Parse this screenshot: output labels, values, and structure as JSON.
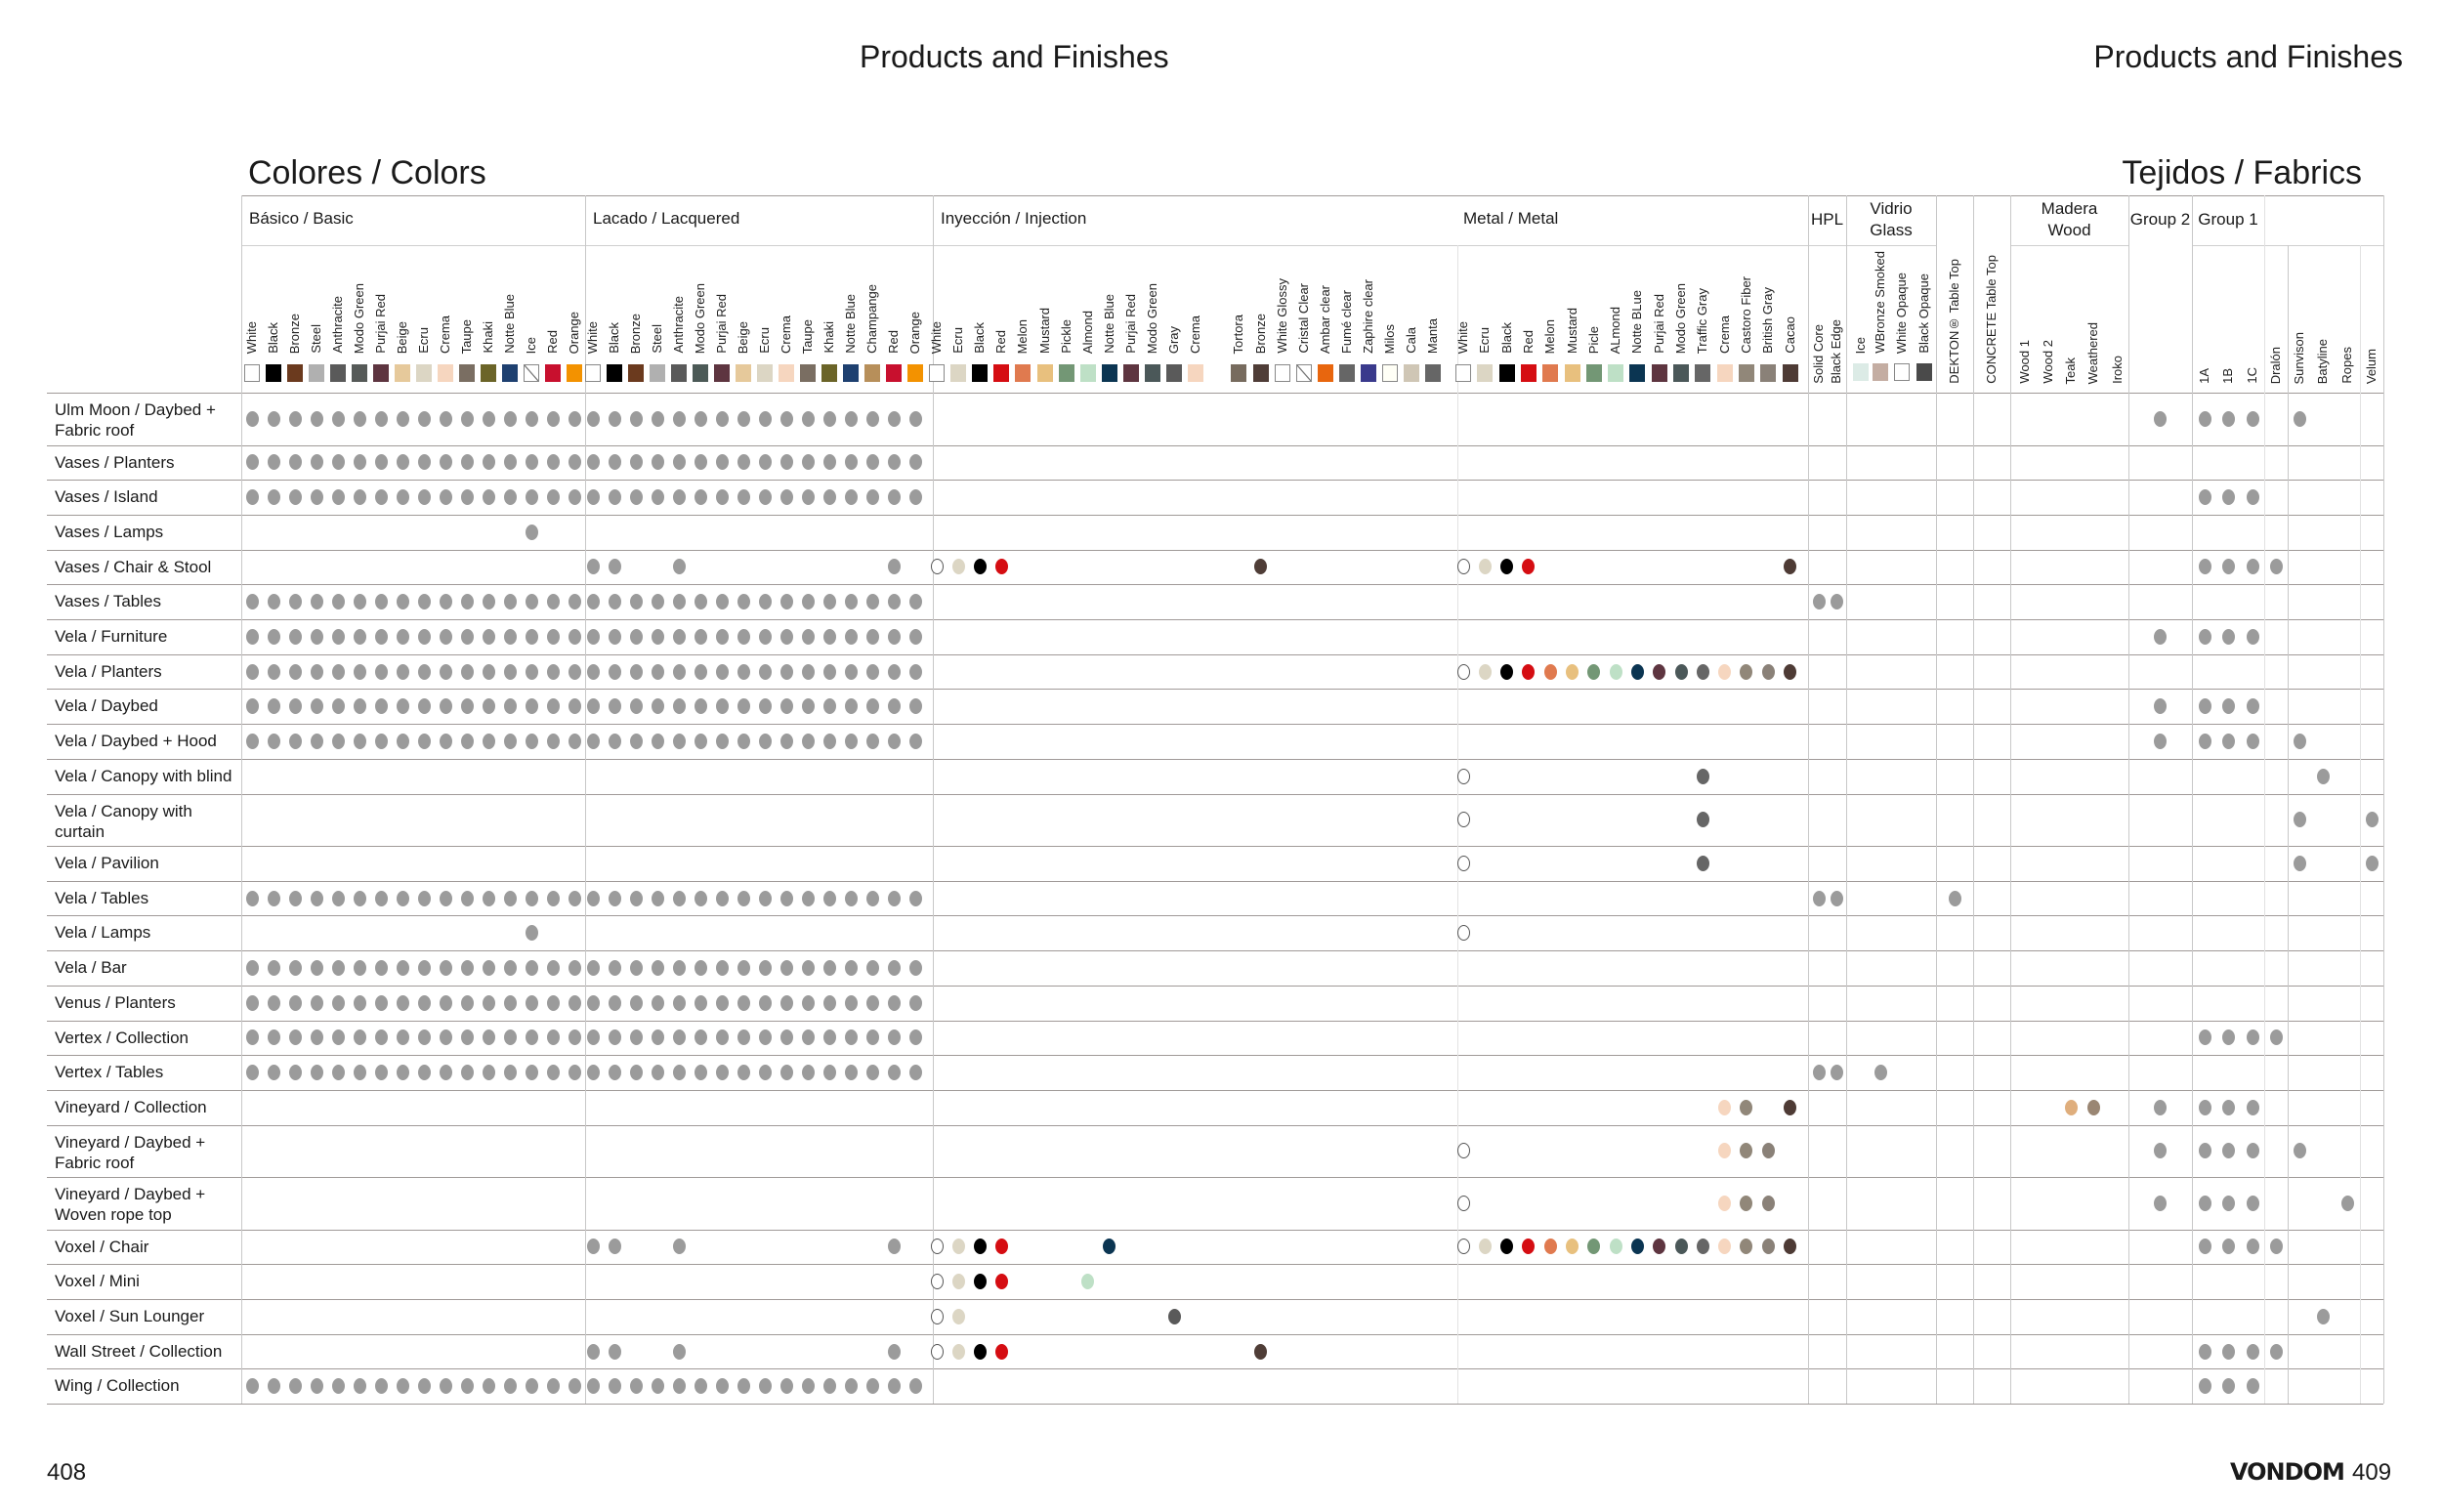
{
  "page_left": {
    "header_title": "Products and Finishes",
    "section_title": "Colores / Colors",
    "page_number": "408"
  },
  "page_right": {
    "header_title": "Products and Finishes",
    "section_title": "Tejidos / Fabrics",
    "brand": "VONDOM",
    "page_number": "409"
  },
  "dot_color": "#9b9b9b",
  "groups": {
    "basic": {
      "label": [
        "Básico / Basic"
      ],
      "columns": [
        {
          "name": "White",
          "swatch": "#ffffff"
        },
        {
          "name": "Black",
          "swatch": "#000000"
        },
        {
          "name": "Bronze",
          "swatch": "#6b3a1e"
        },
        {
          "name": "Steel",
          "swatch": "#b0b0b0"
        },
        {
          "name": "Anthracite",
          "swatch": "#5a5a5a"
        },
        {
          "name": "Modo Green",
          "swatch": "#565a58"
        },
        {
          "name": "Purjai Red",
          "swatch": "#5e3540"
        },
        {
          "name": "Beige",
          "swatch": "#e6c99b"
        },
        {
          "name": "Ecru",
          "swatch": "#dcd6c4"
        },
        {
          "name": "Crema",
          "swatch": "#f6d6bf"
        },
        {
          "name": "Taupe",
          "swatch": "#7a6e62"
        },
        {
          "name": "Khaki",
          "swatch": "#6b6428"
        },
        {
          "name": "Notte Blue",
          "swatch": "#1e4070"
        },
        {
          "name": "Ice",
          "swatch": "slash"
        },
        {
          "name": "Red",
          "swatch": "#c8102e"
        },
        {
          "name": "Orange",
          "swatch": "#f39200"
        }
      ]
    },
    "lacquered": {
      "label": [
        "Lacado / Lacquered"
      ],
      "columns": [
        {
          "name": "White",
          "swatch": "#ffffff"
        },
        {
          "name": "Black",
          "swatch": "#000000"
        },
        {
          "name": "Bronze",
          "swatch": "#6b3a1e"
        },
        {
          "name": "Steel",
          "swatch": "#b0b0b0"
        },
        {
          "name": "Anthracite",
          "swatch": "#5a5a5a"
        },
        {
          "name": "Modo Green",
          "swatch": "#4c5a57"
        },
        {
          "name": "Purjai Red",
          "swatch": "#5e3540"
        },
        {
          "name": "Beige",
          "swatch": "#e6c99b"
        },
        {
          "name": "Ecru",
          "swatch": "#dcd6c4"
        },
        {
          "name": "Crema",
          "swatch": "#f6d6bf"
        },
        {
          "name": "Taupe",
          "swatch": "#7a6e62"
        },
        {
          "name": "Khaki",
          "swatch": "#6b6428"
        },
        {
          "name": "Notte Blue",
          "swatch": "#1e4070"
        },
        {
          "name": "Champange",
          "swatch": "#b78f5a"
        },
        {
          "name": "Red",
          "swatch": "#c8102e"
        },
        {
          "name": "Orange",
          "swatch": "#f39200"
        }
      ]
    },
    "injection": {
      "label": [
        "Inyección / Injection"
      ],
      "columns": [
        {
          "name": "White",
          "swatch": "#ffffff"
        },
        {
          "name": "Ecru",
          "swatch": "#dcd6c4"
        },
        {
          "name": "Black",
          "swatch": "#000000"
        },
        {
          "name": "Red",
          "swatch": "#d50d12"
        },
        {
          "name": "Melon",
          "swatch": "#e07a4f"
        },
        {
          "name": "Mustard",
          "swatch": "#e8c07e"
        },
        {
          "name": "Pickle",
          "swatch": "#739775"
        },
        {
          "name": "Almond",
          "swatch": "#bee0c6"
        },
        {
          "name": "Notte Blue",
          "swatch": "#0b3552"
        },
        {
          "name": "Purjai Red",
          "swatch": "#5e3540"
        },
        {
          "name": "Modo Green",
          "swatch": "#4b5859"
        },
        {
          "name": "Gray",
          "swatch": "#5a5a5a"
        },
        {
          "name": "Crema",
          "swatch": "#f6d6bf"
        },
        {
          "name": "Tortora",
          "swatch": "#776b5e"
        },
        {
          "name": "Bronze",
          "swatch": "#4f3d37"
        },
        {
          "name": "White Glossy",
          "swatch": "#ffffff"
        },
        {
          "name": "Cristal Clear",
          "swatch": "slash"
        },
        {
          "name": "Ambar clear",
          "swatch": "#e8660e"
        },
        {
          "name": "Fumé clear",
          "swatch": "#666666"
        },
        {
          "name": "Zaphire clear",
          "swatch": "#3a3a8c"
        },
        {
          "name": "Milos",
          "swatch": "#fffff6"
        },
        {
          "name": "Cala",
          "swatch": "#cfc6b5"
        },
        {
          "name": "Manta",
          "swatch": "#666666"
        }
      ]
    },
    "metal": {
      "label": [
        "Metal / Metal"
      ],
      "columns": [
        {
          "name": "White",
          "swatch": "#ffffff"
        },
        {
          "name": "Ecru",
          "swatch": "#dcd6c4"
        },
        {
          "name": "Black",
          "swatch": "#000000"
        },
        {
          "name": "Red",
          "swatch": "#d50d12"
        },
        {
          "name": "Melon",
          "swatch": "#e07a4f"
        },
        {
          "name": "Mustard",
          "swatch": "#e8c07e"
        },
        {
          "name": "Picle",
          "swatch": "#739775"
        },
        {
          "name": "ALmond",
          "swatch": "#bee0c6"
        },
        {
          "name": "Notte BLue",
          "swatch": "#0b3552"
        },
        {
          "name": "Purjai Red",
          "swatch": "#5e3540"
        },
        {
          "name": "Modo Green",
          "swatch": "#4b5859"
        },
        {
          "name": "Traffic Gray",
          "swatch": "#666666"
        },
        {
          "name": "Crema",
          "swatch": "#f6d6bf"
        },
        {
          "name": "Castoro Fiber",
          "swatch": "#918779"
        },
        {
          "name": "British Gray",
          "swatch": "#8a8178"
        },
        {
          "name": "Cacao",
          "swatch": "#4e3b35"
        }
      ]
    },
    "hpl": {
      "label": [
        "HPL"
      ],
      "columns": [
        {
          "name": "Solid Core"
        },
        {
          "name": "Black Edge"
        }
      ]
    },
    "glass": {
      "label": [
        "Vidrio",
        "Glass"
      ],
      "columns": [
        {
          "name": "Ice",
          "swatch": "#dcebe6"
        },
        {
          "name": "WBronze Smoked",
          "swatch": "#c4ada2"
        },
        {
          "name": "White Opaque",
          "swatch": "#ffffff"
        },
        {
          "name": "Black Opaque",
          "swatch": "#4a4a4a"
        }
      ]
    },
    "dekton": {
      "label": [],
      "columns": [
        {
          "name": "DEKTON® Table Top"
        }
      ]
    },
    "concrete": {
      "label": [],
      "columns": [
        {
          "name": "CONCRETE Table Top"
        }
      ]
    },
    "wood": {
      "label": [
        "Madera",
        "Wood"
      ],
      "columns": [
        {
          "name": "Wood 1"
        },
        {
          "name": "Wood 2"
        },
        {
          "name": "Teak",
          "dot": "#dfae7d"
        },
        {
          "name": "Weathered",
          "dot": "#9a8673"
        },
        {
          "name": "Iroko"
        }
      ]
    },
    "group2": {
      "label": [
        "Group 2"
      ],
      "columns": [
        {
          "name": ""
        }
      ]
    },
    "group1": {
      "label": [
        "Group 1"
      ],
      "columns": [
        {
          "name": "1A"
        },
        {
          "name": "1B"
        },
        {
          "name": "1C"
        }
      ]
    },
    "fabric_types": {
      "label": [],
      "columns": [
        {
          "name": "Dralón"
        },
        {
          "name": "Sunvison"
        },
        {
          "name": "Batyline"
        },
        {
          "name": "Ropes"
        },
        {
          "name": "Velum"
        }
      ]
    }
  },
  "rows": [
    {
      "label": [
        "Ulm Moon / Daybed +",
        "Fabric roof"
      ],
      "finishes": {
        "basic": "all",
        "lacquered": "all",
        "group2": [
          0
        ],
        "group1": [
          0,
          1,
          2
        ],
        "fabric_types": [
          1
        ]
      }
    },
    {
      "label": [
        "Vases / Planters"
      ],
      "finishes": {
        "basic": "all",
        "lacquered": "all"
      }
    },
    {
      "label": [
        "Vases / Island"
      ],
      "finishes": {
        "basic": "all",
        "lacquered": "all",
        "group1": [
          0,
          1,
          2
        ]
      }
    },
    {
      "label": [
        "Vases / Lamps"
      ],
      "finishes": {
        "basic": [
          13
        ]
      }
    },
    {
      "label": [
        "Vases / Chair & Stool"
      ],
      "finishes": {
        "lacquered": [
          0,
          1,
          4,
          14
        ],
        "injection": [
          0,
          1,
          2,
          3,
          14
        ],
        "metal": [
          0,
          1,
          2,
          3,
          15
        ],
        "group1": [
          0,
          1,
          2
        ],
        "fabric_types": [
          0
        ]
      }
    },
    {
      "label": [
        "Vases / Tables"
      ],
      "finishes": {
        "basic": "all",
        "lacquered": "all",
        "hpl": [
          0,
          1
        ]
      }
    },
    {
      "label": [
        "Vela / Furniture"
      ],
      "finishes": {
        "basic": "all",
        "lacquered": "all",
        "group2": [
          0
        ],
        "group1": [
          0,
          1,
          2
        ]
      }
    },
    {
      "label": [
        "Vela / Planters"
      ],
      "finishes": {
        "basic": "all",
        "lacquered": "all",
        "metal": "all"
      }
    },
    {
      "label": [
        "Vela / Daybed"
      ],
      "finishes": {
        "basic": "all",
        "lacquered": "all",
        "group2": [
          0
        ],
        "group1": [
          0,
          1,
          2
        ]
      }
    },
    {
      "label": [
        "Vela / Daybed + Hood"
      ],
      "finishes": {
        "basic": "all",
        "lacquered": "all",
        "group2": [
          0
        ],
        "group1": [
          0,
          1,
          2
        ],
        "fabric_types": [
          1
        ]
      }
    },
    {
      "label": [
        "Vela / Canopy with blind"
      ],
      "finishes": {
        "metal": [
          0,
          11
        ],
        "fabric_types": [
          2
        ]
      }
    },
    {
      "label": [
        "Vela / Canopy with",
        "curtain"
      ],
      "finishes": {
        "metal": [
          0,
          11
        ],
        "fabric_types": [
          1,
          4
        ]
      }
    },
    {
      "label": [
        "Vela / Pavilion"
      ],
      "finishes": {
        "metal": [
          0,
          11
        ],
        "fabric_types": [
          1,
          4
        ]
      }
    },
    {
      "label": [
        "Vela / Tables"
      ],
      "finishes": {
        "basic": "all",
        "lacquered": "all",
        "hpl": [
          0,
          1
        ],
        "dekton": [
          0
        ]
      }
    },
    {
      "label": [
        "Vela / Lamps"
      ],
      "finishes": {
        "basic": [
          13
        ],
        "metal": [
          0
        ]
      }
    },
    {
      "label": [
        "Vela / Bar"
      ],
      "finishes": {
        "basic": "all",
        "lacquered": "all"
      }
    },
    {
      "label": [
        "Venus / Planters"
      ],
      "finishes": {
        "basic": "all",
        "lacquered": "all"
      }
    },
    {
      "label": [
        "Vertex / Collection"
      ],
      "finishes": {
        "basic": "all",
        "lacquered": "all",
        "group1": [
          0,
          1,
          2
        ],
        "fabric_types": [
          0
        ]
      }
    },
    {
      "label": [
        "Vertex / Tables"
      ],
      "finishes": {
        "basic": "all",
        "lacquered": "all",
        "hpl": [
          0,
          1
        ],
        "glass": [
          1
        ]
      }
    },
    {
      "label": [
        "Vineyard / Collection"
      ],
      "finishes": {
        "metal": [
          12,
          13,
          15
        ],
        "wood": [
          2,
          3
        ],
        "group2": [
          0
        ],
        "group1": [
          0,
          1,
          2
        ]
      }
    },
    {
      "label": [
        "Vineyard / Daybed +",
        "Fabric roof"
      ],
      "finishes": {
        "metal": [
          0,
          12,
          13,
          14
        ],
        "group2": [
          0
        ],
        "group1": [
          0,
          1,
          2
        ],
        "fabric_types": [
          1
        ]
      }
    },
    {
      "label": [
        "Vineyard / Daybed +",
        "Woven rope top"
      ],
      "finishes": {
        "metal": [
          0,
          12,
          13,
          14
        ],
        "group2": [
          0
        ],
        "group1": [
          0,
          1,
          2
        ],
        "fabric_types": [
          3
        ]
      }
    },
    {
      "label": [
        "Voxel / Chair"
      ],
      "finishes": {
        "lacquered": [
          0,
          1,
          4,
          14
        ],
        "injection": [
          0,
          1,
          2,
          3,
          8
        ],
        "metal": "all",
        "group1": [
          0,
          1,
          2
        ],
        "fabric_types": [
          0
        ]
      }
    },
    {
      "label": [
        "Voxel / Mini"
      ],
      "finishes": {
        "injection": [
          0,
          1,
          2,
          3,
          7
        ]
      }
    },
    {
      "label": [
        "Voxel / Sun Lounger"
      ],
      "finishes": {
        "injection": [
          0,
          1,
          11
        ],
        "fabric_types": [
          2
        ]
      }
    },
    {
      "label": [
        "Wall Street / Collection"
      ],
      "finishes": {
        "lacquered": [
          0,
          1,
          4,
          14
        ],
        "injection": [
          0,
          1,
          2,
          3,
          14
        ],
        "group1": [
          0,
          1,
          2
        ],
        "fabric_types": [
          0
        ]
      }
    },
    {
      "label": [
        "Wing / Collection"
      ],
      "finishes": {
        "basic": "all",
        "lacquered": "all",
        "group1": [
          0,
          1,
          2
        ]
      }
    }
  ]
}
